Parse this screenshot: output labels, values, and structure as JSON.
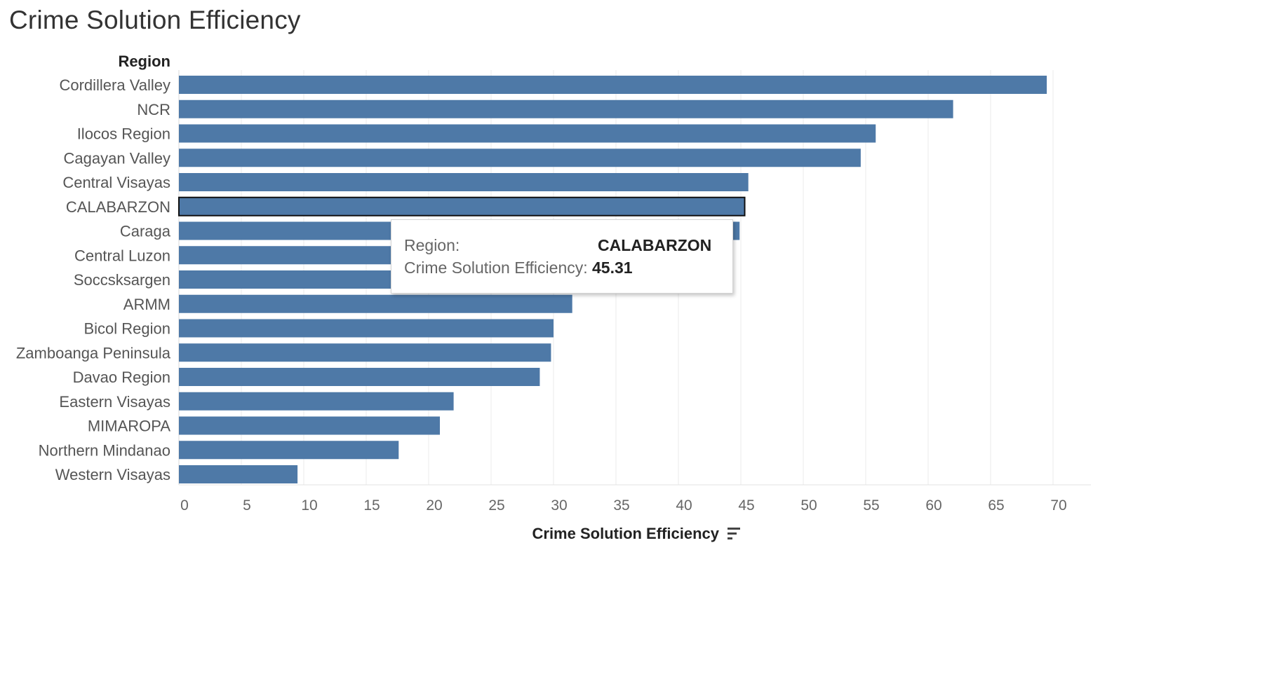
{
  "title": "Crime Solution Efficiency",
  "chart_data": {
    "type": "bar",
    "orientation": "horizontal",
    "title": "Crime Solution Efficiency",
    "category_header": "Region",
    "xlabel": "Crime Solution Efficiency",
    "ylabel": "Region",
    "categories": [
      "Cordillera Valley",
      "NCR",
      "Ilocos Region",
      "Cagayan Valley",
      "Central Visayas",
      "CALABARZON",
      "Caraga",
      "Central Luzon",
      "Soccsksargen",
      "ARMM",
      "Bicol Region",
      "Zamboanga  Peninsula",
      "Davao Region",
      "Eastern Visayas",
      "MIMAROPA",
      "Northern Mindanao",
      "Western Visayas"
    ],
    "values": [
      69.5,
      62.0,
      55.8,
      54.6,
      45.6,
      45.31,
      44.9,
      37.2,
      35.0,
      31.5,
      30.0,
      29.8,
      28.9,
      22.0,
      20.9,
      17.6,
      9.5
    ],
    "xlim": [
      0,
      72
    ],
    "ticks": [
      0,
      5,
      10,
      15,
      20,
      25,
      30,
      35,
      40,
      45,
      50,
      55,
      60,
      65,
      70
    ],
    "highlighted_category": "CALABARZON",
    "grid": "vertical",
    "bar_color": "#4e79a7",
    "sort_icon": "sort-descending-icon"
  },
  "tooltip": {
    "region_key": "Region:",
    "region_value": "CALABARZON",
    "metric_key": "Crime Solution Efficiency:",
    "metric_value": "45.31"
  }
}
